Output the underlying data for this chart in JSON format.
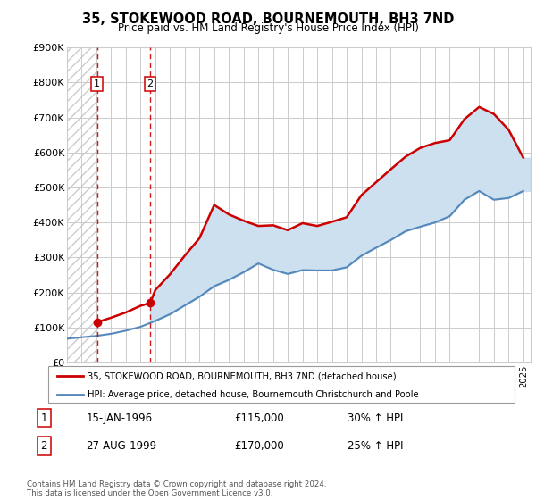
{
  "title": "35, STOKEWOOD ROAD, BOURNEMOUTH, BH3 7ND",
  "subtitle": "Price paid vs. HM Land Registry's House Price Index (HPI)",
  "legend_line1": "35, STOKEWOOD ROAD, BOURNEMOUTH, BH3 7ND (detached house)",
  "legend_line2": "HPI: Average price, detached house, Bournemouth Christchurch and Poole",
  "transaction1_date": "15-JAN-1996",
  "transaction1_price": 115000,
  "transaction1_hpi": "30% ↑ HPI",
  "transaction1_year": 1996.04,
  "transaction2_date": "27-AUG-1999",
  "transaction2_price": 170000,
  "transaction2_hpi": "25% ↑ HPI",
  "transaction2_year": 1999.65,
  "red_color": "#cc0000",
  "blue_color": "#5588bb",
  "blue_fill_color": "#cce0f0",
  "grid_color": "#cccccc",
  "hatch_color": "#cccccc",
  "footnote": "Contains HM Land Registry data © Crown copyright and database right 2024.\nThis data is licensed under the Open Government Licence v3.0.",
  "xmin": 1994.0,
  "xmax": 2025.5,
  "ymin": 0,
  "ymax": 900000,
  "hpi_years": [
    1994,
    1995,
    1996,
    1997,
    1998,
    1999,
    2000,
    2001,
    2002,
    2003,
    2004,
    2005,
    2006,
    2007,
    2008,
    2009,
    2010,
    2011,
    2012,
    2013,
    2014,
    2015,
    2016,
    2017,
    2018,
    2019,
    2020,
    2021,
    2022,
    2023,
    2024,
    2025
  ],
  "hpi_values": [
    68000,
    72000,
    76000,
    82000,
    91000,
    102000,
    119000,
    138000,
    163000,
    188000,
    218000,
    236000,
    258000,
    283000,
    265000,
    253000,
    264000,
    263000,
    263000,
    272000,
    305000,
    328000,
    350000,
    375000,
    388000,
    400000,
    418000,
    465000,
    490000,
    465000,
    470000,
    490000
  ],
  "property_years": [
    1996.04,
    1997,
    1998,
    1999,
    1999.65,
    2000,
    2001,
    2002,
    2003,
    2004,
    2005,
    2006,
    2007,
    2008,
    2009,
    2010,
    2011,
    2012,
    2013,
    2014,
    2015,
    2016,
    2017,
    2018,
    2019,
    2020,
    2021,
    2022,
    2023,
    2024,
    2025
  ],
  "property_values": [
    115000,
    128000,
    143000,
    162000,
    170000,
    207000,
    252000,
    305000,
    355000,
    450000,
    423000,
    405000,
    390000,
    392000,
    378000,
    398000,
    390000,
    402000,
    415000,
    478000,
    515000,
    552000,
    588000,
    613000,
    627000,
    635000,
    695000,
    730000,
    710000,
    665000,
    585000
  ]
}
